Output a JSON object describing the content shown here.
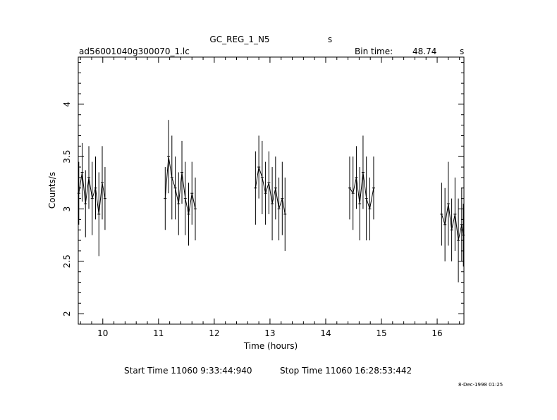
{
  "header": {
    "title": "GC_REG_1_N5",
    "title_unit": "s",
    "file_name": "ad56001040g300070_1.lc",
    "bin_time_label": "Bin time:",
    "bin_time_value": "48.74",
    "bin_time_unit": "s"
  },
  "footer": {
    "start_label": "Start Time 11060  9:33:44:940",
    "stop_label": "Stop Time 11060 16:28:53:442",
    "timestamp": "8-Dec-1998 01:25"
  },
  "chart_data": {
    "type": "line",
    "xlabel": "Time (hours)",
    "ylabel": "Counts/s",
    "xlim": [
      9.56,
      16.48
    ],
    "ylim": [
      1.9,
      4.45
    ],
    "xticks": [
      10,
      11,
      12,
      13,
      14,
      15,
      16
    ],
    "yticks": [
      2,
      2.5,
      3,
      3.5,
      4
    ],
    "ytick_labels": [
      "2",
      "2.5",
      "3",
      "3.5",
      "4"
    ],
    "grid": false,
    "line_color": "#000000",
    "series": [
      {
        "segment": 1,
        "x": [
          9.57,
          9.63,
          9.69,
          9.75,
          9.81,
          9.87,
          9.93,
          9.99,
          10.04
        ],
        "y": [
          3.15,
          3.35,
          3.05,
          3.3,
          3.1,
          3.2,
          2.95,
          3.25,
          3.1
        ],
        "err": [
          0.3,
          0.28,
          0.32,
          0.3,
          0.35,
          0.3,
          0.4,
          0.35,
          0.3
        ]
      },
      {
        "segment": 2,
        "x": [
          11.12,
          11.18,
          11.24,
          11.3,
          11.36,
          11.42,
          11.48,
          11.54,
          11.6,
          11.66
        ],
        "y": [
          3.1,
          3.5,
          3.3,
          3.2,
          3.05,
          3.35,
          3.1,
          2.95,
          3.15,
          3.0
        ],
        "err": [
          0.3,
          0.35,
          0.4,
          0.3,
          0.3,
          0.3,
          0.35,
          0.3,
          0.3,
          0.3
        ]
      },
      {
        "segment": 3,
        "x": [
          12.74,
          12.8,
          12.86,
          12.92,
          12.98,
          13.04,
          13.1,
          13.16,
          13.22,
          13.27
        ],
        "y": [
          3.2,
          3.4,
          3.3,
          3.15,
          3.25,
          3.05,
          3.2,
          3.0,
          3.1,
          2.95
        ],
        "err": [
          0.35,
          0.3,
          0.35,
          0.3,
          0.3,
          0.35,
          0.3,
          0.3,
          0.35,
          0.35
        ]
      },
      {
        "segment": 4,
        "x": [
          14.43,
          14.49,
          14.55,
          14.61,
          14.67,
          14.73,
          14.79,
          14.86
        ],
        "y": [
          3.2,
          3.15,
          3.3,
          3.05,
          3.35,
          3.1,
          3.0,
          3.2
        ],
        "err": [
          0.3,
          0.35,
          0.3,
          0.35,
          0.35,
          0.4,
          0.3,
          0.3
        ]
      },
      {
        "segment": 5,
        "x": [
          16.08,
          16.14,
          16.2,
          16.26,
          16.32,
          16.38,
          16.44,
          16.47
        ],
        "y": [
          2.95,
          2.85,
          3.05,
          2.8,
          2.95,
          2.7,
          2.85,
          2.75
        ],
        "err": [
          0.3,
          0.35,
          0.4,
          0.3,
          0.35,
          0.4,
          0.35,
          0.3
        ]
      }
    ]
  }
}
